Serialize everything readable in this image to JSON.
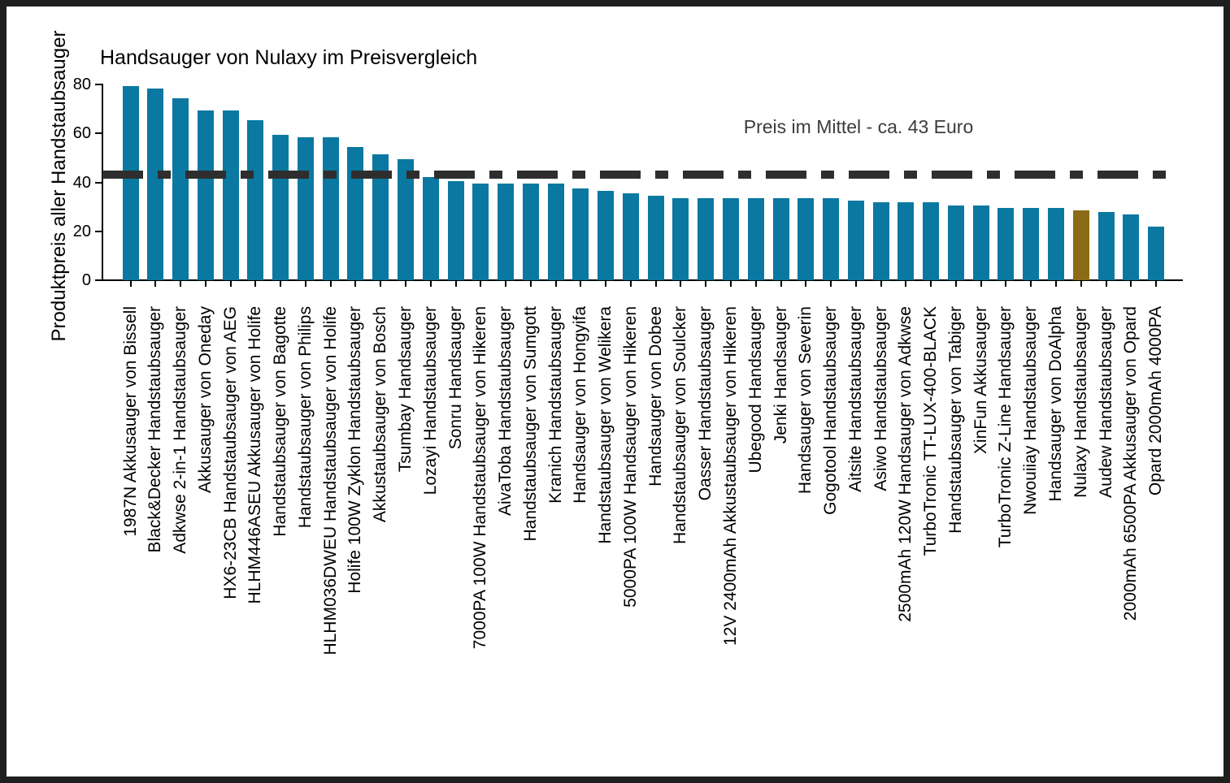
{
  "chart_data": {
    "type": "bar",
    "title": "Handsauger von Nulaxy im Preisvergleich",
    "ylabel": "Produktpreis aller Handstaubsauger",
    "xlabel": "",
    "ylim": [
      0,
      80
    ],
    "yticks": [
      0,
      20,
      40,
      60,
      80
    ],
    "grid": false,
    "legend": "none",
    "bar_color": "#0a78a1",
    "highlight_color": "#8b6b15",
    "highlight_category": "Nulaxy Handstaubsauger",
    "annotation": {
      "text": "Preis im Mittel - ca. 43 Euro",
      "line_value": 43,
      "line_style": "dash-dot",
      "line_color": "#2e2e2e",
      "text_color": "#3c3c3c"
    },
    "categories": [
      "1987N Akkusauger von Bissell",
      "Black&Decker Handstaubsauger",
      "Adkwse 2-in-1 Handstaubsauger",
      "Akkusauger von Oneday",
      "HX6-23CB Handstaubsauger von AEG",
      "HLHM446ASEU Akkusauger von Holife",
      "Handstaubsauger von Bagotte",
      "Handstaubsauger von Philips",
      "HLHM036DWEU Handstaubsauger von Holife",
      "Holife 100W Zyklon Handstaubsauger",
      "Akkustaubsauger von Bosch",
      "Tsumbay Handsauger",
      "Lozayi Handstaubsauger",
      "Sonru Handsauger",
      "7000PA 100W Handstaubsauger von Hikeren",
      "AivaToba Handstaubsauger",
      "Handstaubsauger von Sumgott",
      "Kranich Handstaubsauger",
      "Handsauger von Hongyifa",
      "Handstaubsauger von Welikera",
      "5000PA 100W Handsauger von Hikeren",
      "Handsauger von Dobee",
      "Handstaubsauger von Soulcker",
      "Oasser Handstaubsauger",
      "12V 2400mAh Akkustaubsauger von Hikeren",
      "Ubegood Handsauger",
      "Jenki Handsauger",
      "Handsauger von Severin",
      "Gogotool Handstaubsauger",
      "Aitsite Handstaubsauger",
      "Asiwo Handstaubsauger",
      "2500mAh 120W Handsauger von Adkwse",
      "TurboTronic TT-LUX-400-BLACK",
      "Handstaubsauger von Tabiger",
      "XinFun Akkusauger",
      "TurboTronic Z-Line Handsauger",
      "Nwouiiay Handstaubsauger",
      "Handsauger von DoAlpha",
      "Nulaxy Handstaubsauger",
      "Audew Handstaubsauger",
      "2000mAh 6500PA Akkusauger von Opard",
      "Opard 2000mAh 4000PA"
    ],
    "values": [
      79.5,
      78.5,
      74.5,
      69.5,
      69.5,
      65.5,
      59.5,
      58.5,
      58.5,
      54.5,
      51.5,
      49.5,
      42,
      40.5,
      39.5,
      39.5,
      39.5,
      39.5,
      37.5,
      36.5,
      35.5,
      34.5,
      33.5,
      33.5,
      33.5,
      33.5,
      33.5,
      33.5,
      33.5,
      32.5,
      32,
      32,
      32,
      30.5,
      30.5,
      29.5,
      29.5,
      29.5,
      28.5,
      28,
      27,
      22
    ]
  }
}
